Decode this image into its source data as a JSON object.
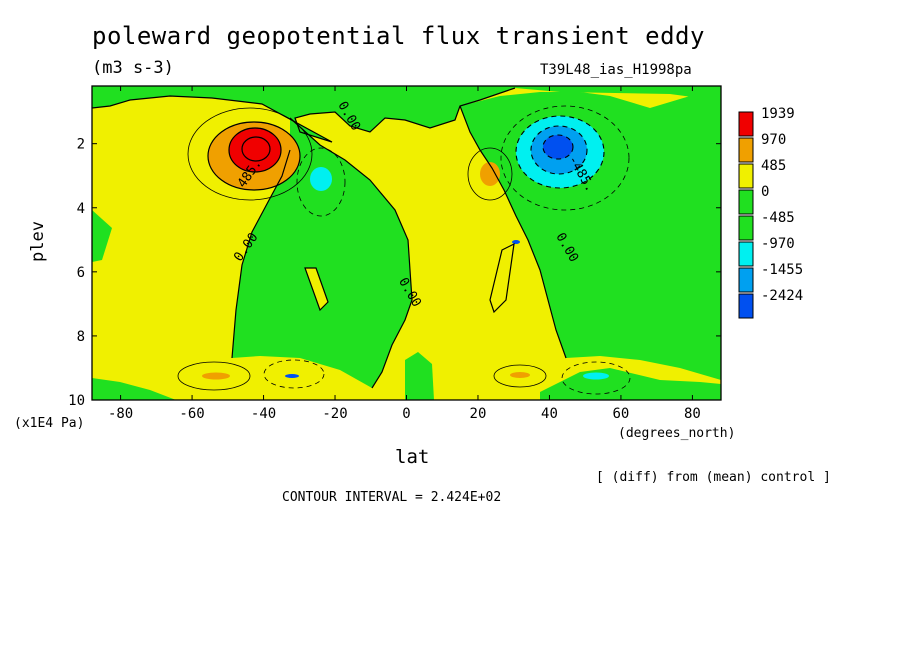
{
  "header": {
    "title": "poleward geopotential flux transient eddy",
    "units": "(m3 s-3)",
    "run_id": "T39L48_ias_H1998pa"
  },
  "footer": {
    "diff_note": "[ (diff) from (mean) control ]",
    "contour_interval": "CONTOUR INTERVAL = 2.424E+02"
  },
  "chart_data": {
    "type": "heatmap",
    "title": "poleward geopotential flux transient eddy",
    "subtitle": "(m3 s-3)",
    "xlabel": "lat",
    "x_unit": "(degrees_north)",
    "ylabel": "plev",
    "y_unit": "(x1E4 Pa)",
    "xlim": [
      -88,
      88
    ],
    "ylim": [
      0.2,
      10
    ],
    "y_inverted": true,
    "x_ticks": [
      -80,
      -60,
      -40,
      -20,
      0,
      20,
      40,
      60,
      80
    ],
    "y_ticks": [
      2,
      4,
      6,
      8,
      10
    ],
    "legend": {
      "levels": [
        1939,
        970,
        485,
        0,
        -485,
        -970,
        -1455,
        -2424
      ],
      "colors": [
        "#f00000",
        "#f0a000",
        "#f0f000",
        "#20e020",
        "#20e020",
        "#00f0f0",
        "#00a0f0",
        "#0050f0"
      ],
      "placement": "right"
    },
    "contour_labels": [
      {
        "text": "0.00",
        "lat": -17,
        "plev": 1.2
      },
      {
        "text": "485.",
        "lat": -43,
        "plev": 3.0
      },
      {
        "text": "0.00",
        "lat": -44,
        "plev": 5.3
      },
      {
        "text": "0.00",
        "lat": 0,
        "plev": 6.7
      },
      {
        "text": "0.00",
        "lat": 44,
        "plev": 5.3
      },
      {
        "text": "-485.",
        "lat": 48,
        "plev": 3.0
      }
    ],
    "features": [
      {
        "name": "southern positive maximum",
        "lat": -43,
        "plev": 2.2,
        "value": 1939
      },
      {
        "name": "northern negative minimum",
        "lat": 42,
        "plev": 2.1,
        "value": -2424
      },
      {
        "name": "southern negative lobe",
        "lat": -24,
        "plev": 3.1,
        "value": -970
      },
      {
        "name": "northern positive lobe",
        "lat": 24,
        "plev": 3.0,
        "value": 970
      }
    ]
  }
}
